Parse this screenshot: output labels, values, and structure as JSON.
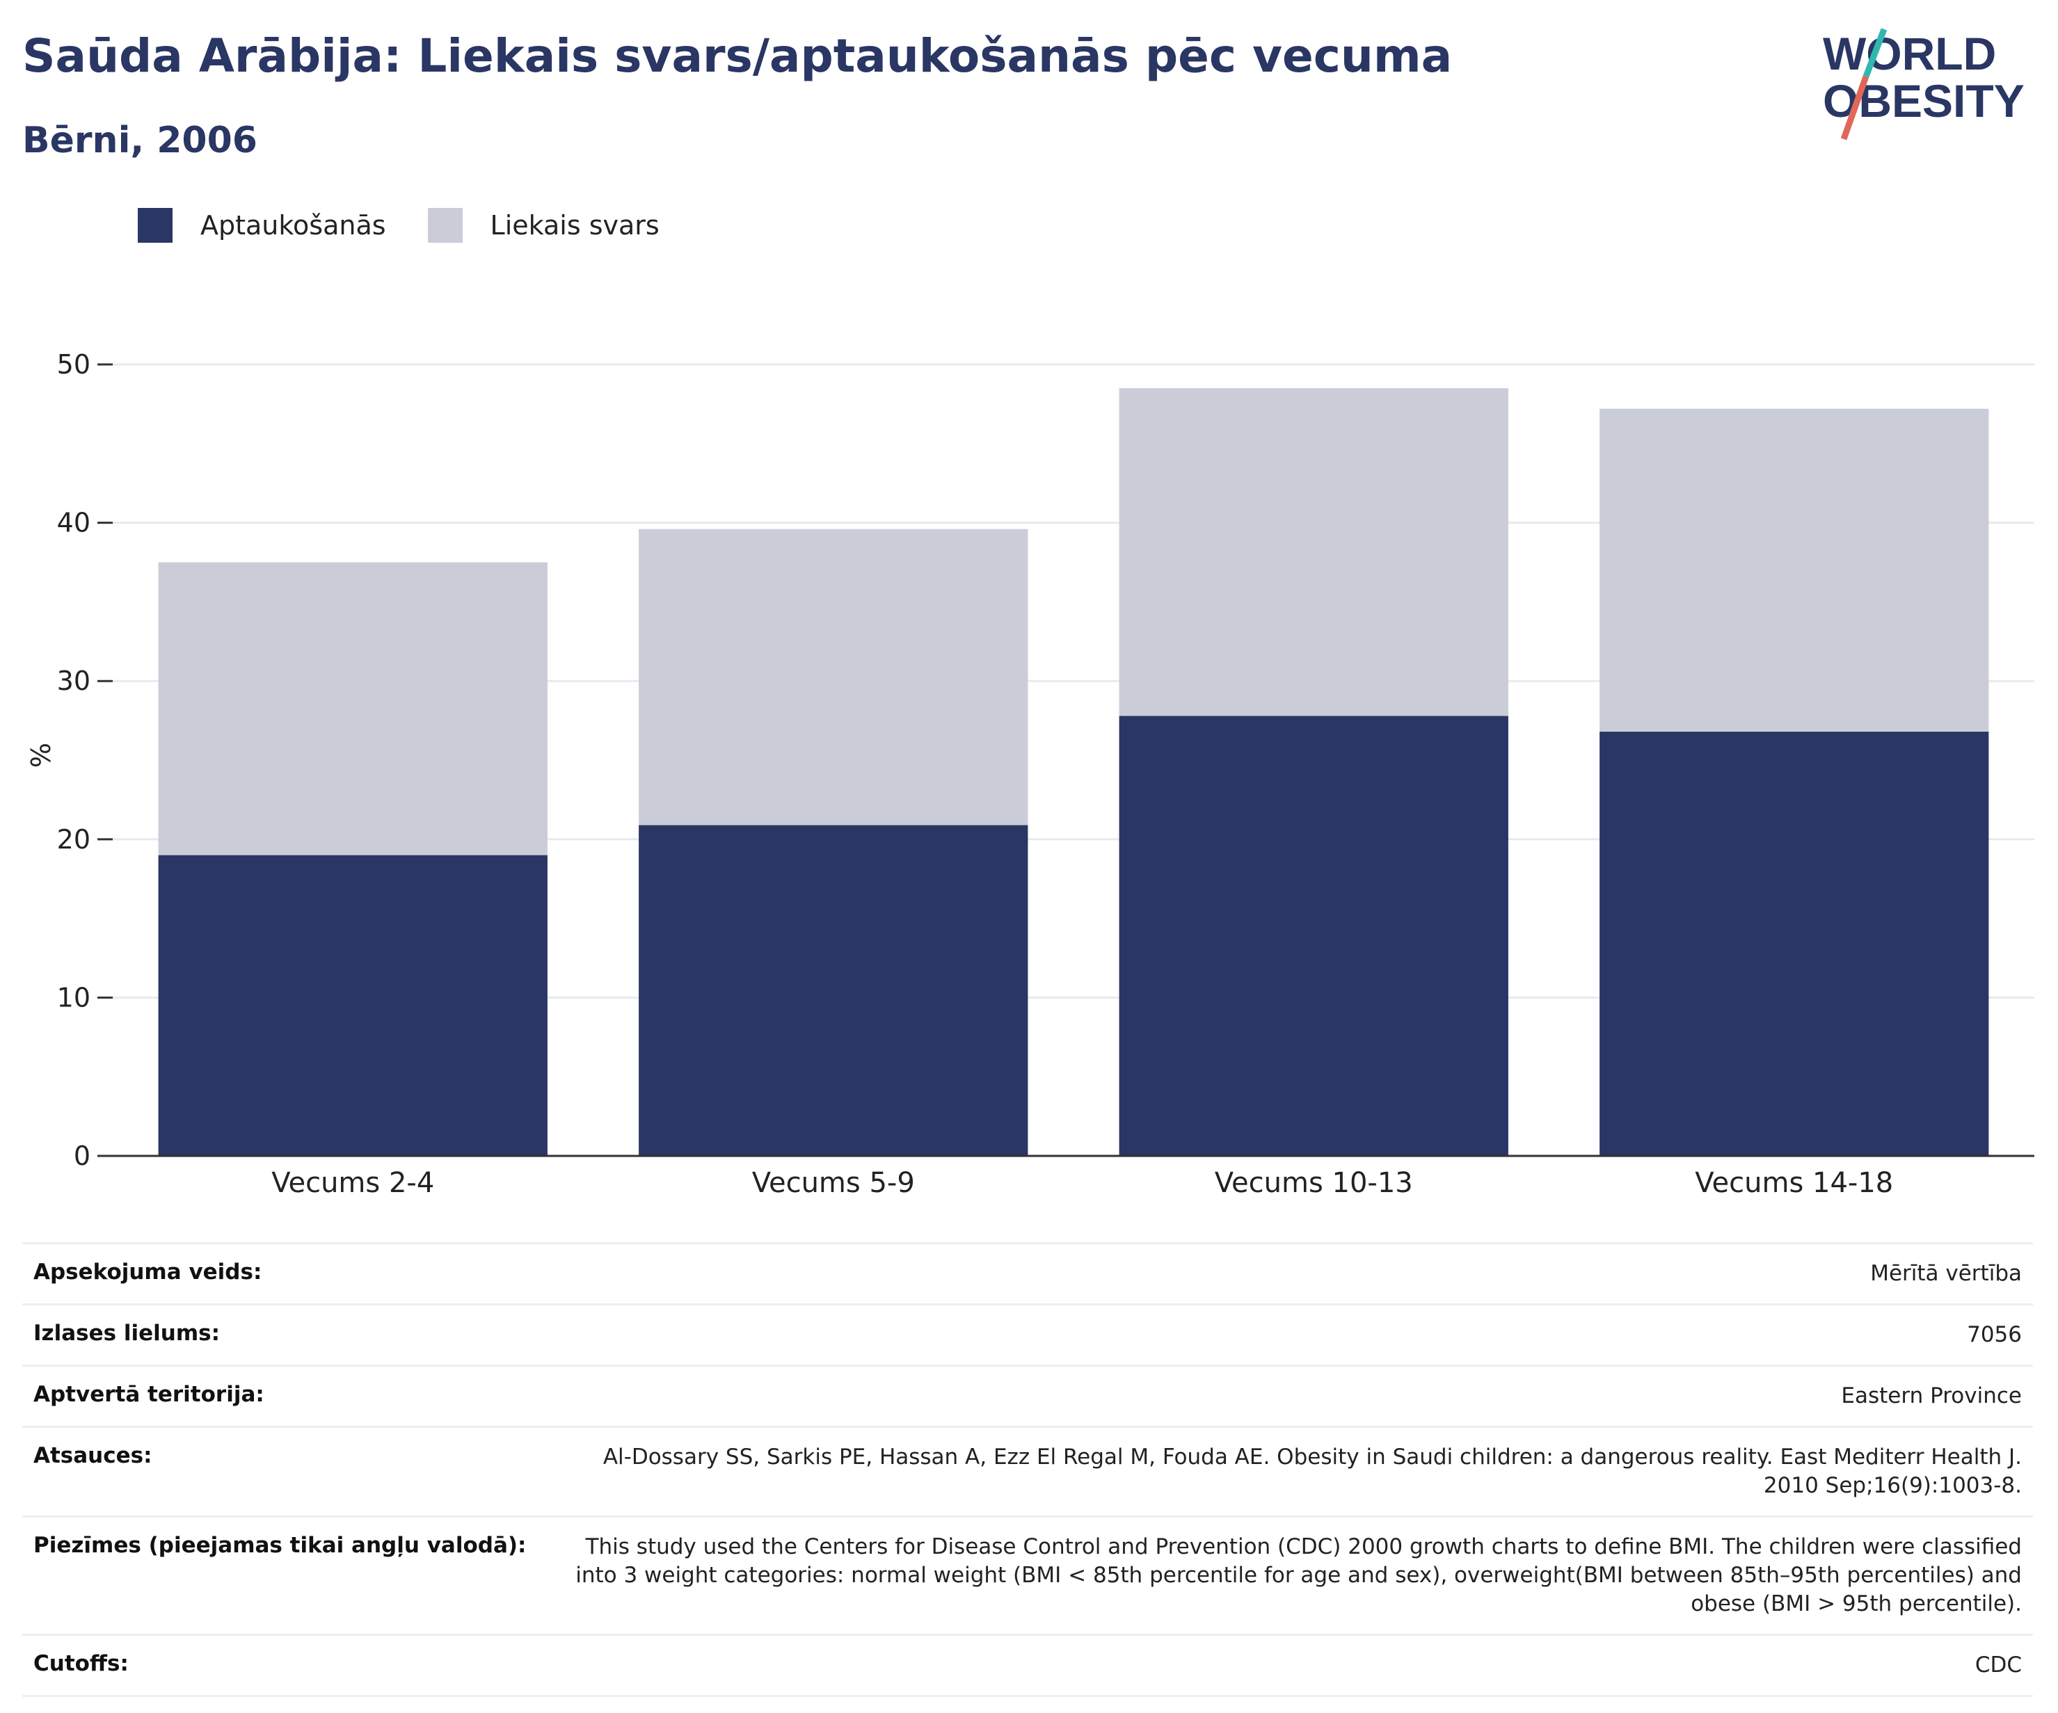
{
  "header": {
    "title": "Saūda Arābija: Liekais svars/aptaukošanās pēc vecuma",
    "subtitle": "Bērni, 2006"
  },
  "logo": {
    "line1": "WORLD",
    "line2": "OBESITY",
    "colors": {
      "text": "#2a3663",
      "slash_top": "#2fb8b0",
      "slash_bottom": "#e0685a"
    }
  },
  "legend": [
    {
      "label": "Aptaukošanās",
      "color": "#2a3663"
    },
    {
      "label": "Liekais svars",
      "color": "#cacdd8"
    }
  ],
  "chart_data": {
    "type": "bar",
    "stacked": true,
    "categories": [
      "Vecums 2-4",
      "Vecums 5-9",
      "Vecums 10-13",
      "Vecums 14-18"
    ],
    "series": [
      {
        "name": "Aptaukošanās",
        "color": "#2a3663",
        "values": [
          19,
          20.9,
          27.8,
          26.8
        ]
      },
      {
        "name": "Liekais svars",
        "color": "#cacdd8",
        "values": [
          18.5,
          18.7,
          20.7,
          20.4
        ]
      }
    ],
    "ylabel": "%",
    "ylim": [
      0,
      50
    ],
    "yticks": [
      "0",
      "10",
      "20",
      "30",
      "40",
      "50"
    ],
    "grid": true,
    "legend_position": "top-left"
  },
  "meta": [
    {
      "label": "Apsekojuma veids:",
      "value": "Mērītā vērtība"
    },
    {
      "label": "Izlases lielums:",
      "value": "7056"
    },
    {
      "label": "Aptvertā teritorija:",
      "value": "Eastern Province"
    },
    {
      "label": "Atsauces:",
      "value": "Al-Dossary SS, Sarkis PE, Hassan A, Ezz El Regal M, Fouda AE. Obesity in Saudi children: a dangerous reality. East Mediterr Health J. 2010 Sep;16(9):1003-8."
    },
    {
      "label": "Piezīmes (pieejamas tikai angļu valodā):",
      "value": "This study used the Centers for Disease Control and Prevention (CDC) 2000 growth charts to define BMI. The children were classified into 3 weight categories: normal weight (BMI < 85th percentile for age and sex), overweight(BMI between 85th–95th percentiles) and obese (BMI > 95th percentile)."
    },
    {
      "label": "Cutoffs:",
      "value": "CDC"
    }
  ]
}
